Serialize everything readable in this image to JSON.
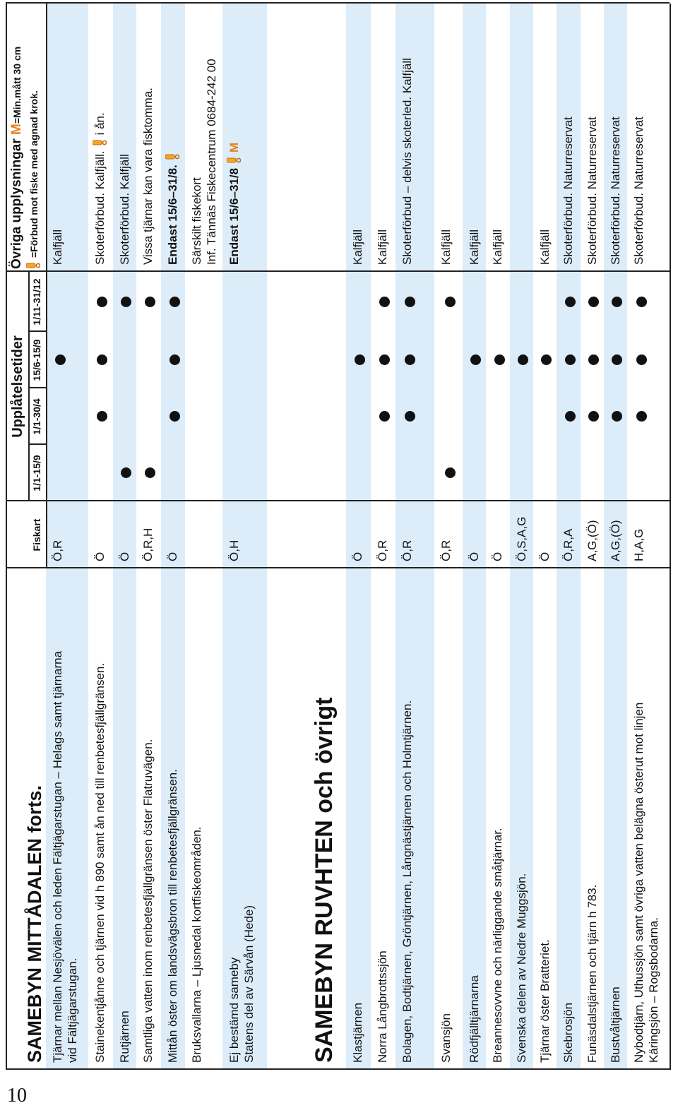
{
  "page_number": "10",
  "header": {
    "fiskart": "Fiskart",
    "periods_title": "Upplåtelsetider",
    "periods": [
      "1/1-15/9",
      "1/1-30/4",
      "15/6-15/9",
      "1/11-31/12"
    ],
    "notes_title": "Övriga upplysningar",
    "min_mark": "M",
    "min_text": "=Min.mått 30 cm",
    "hook_text": "=Förbud mot fiske med agnad krok."
  },
  "sections": [
    {
      "title": "SAMEBYN MITTÅDALEN forts.",
      "rows": [
        {
          "name": [
            "Tjärnar mellan Nesjövälen och leden Fältjägarstugan – Helags samt tjärnarna",
            "vid Fältjägarstugan."
          ],
          "fiskart": "Ö,R",
          "open": [
            false,
            false,
            true,
            false
          ],
          "notes": [
            "Kalfjäll"
          ]
        },
        {
          "name": [
            "Stainekentjånne och tjärnen vid h 890 samt ån ned till renbetesfjällgränsen."
          ],
          "fiskart": "Ö",
          "open": [
            false,
            true,
            true,
            true
          ],
          "notes": [
            "Skoterförbud. Kalfjäll."
          ],
          "hook": true,
          "notes_after": "i ån."
        },
        {
          "name": [
            "Rutjärnen"
          ],
          "fiskart": "Ö",
          "open": [
            true,
            false,
            false,
            true
          ],
          "notes": [
            "Skoterförbud. Kalfjäll"
          ]
        },
        {
          "name": [
            "Samtliga vatten inom renbetesfjällgränsen öster Flatruvägen."
          ],
          "fiskart": "Ö,R,H",
          "open": [
            true,
            false,
            false,
            true
          ],
          "notes": [
            "Vissa tjärnar kan vara fisktomma."
          ]
        },
        {
          "name": [
            "Mittån öster om landsvägsbron till renbetesfjällgränsen."
          ],
          "fiskart": "Ö",
          "open": [
            false,
            true,
            true,
            true
          ],
          "notes": [
            "Endast 15/6–31/8."
          ],
          "bold": true,
          "hook": true
        },
        {
          "name": [
            "Bruksvallarna – Ljusnedal kortfiskeområden."
          ],
          "open": [
            false,
            false,
            false,
            false
          ],
          "notes": [
            "Särskilt fiskekort",
            "Inf. Tännäs Fiskecentrum 0684-242 00"
          ]
        },
        {
          "name": [
            "Ej bestämd sameby",
            "Statens del av Särvån (Hede)"
          ],
          "fiskart": "Ö,H",
          "open": [
            false,
            false,
            false,
            false
          ],
          "notes": [
            "Endast 15/6–31/8"
          ],
          "bold": true,
          "hook": true,
          "min_mark": "M"
        }
      ]
    },
    {
      "title": "SAMEBYN RUVHTEN och övrigt",
      "rows": [
        {
          "name": [
            "Klastjärnen"
          ],
          "fiskart": "Ö",
          "open": [
            false,
            false,
            true,
            false
          ],
          "notes": [
            "Kalfjäll"
          ]
        },
        {
          "name": [
            "Norra Långbrottssjön"
          ],
          "fiskart": "Ö,R",
          "open": [
            false,
            true,
            true,
            true
          ],
          "notes": [
            "Kalfjäll"
          ]
        },
        {
          "name": [
            "Bolagen, Bodtjärnen, Gröntjärnen, Långnästjärnen och Holmtjärnen."
          ],
          "fiskart": "Ö,R",
          "open": [
            false,
            true,
            true,
            true
          ],
          "notes": [
            "Skoterförbud – delvis skoterled. Kalfjäll"
          ]
        },
        {
          "name": [
            "Svansjön"
          ],
          "fiskart": "Ö,R",
          "open": [
            true,
            false,
            false,
            true
          ],
          "notes": [
            "Kalfjäll"
          ]
        },
        {
          "name": [
            "Rödfjälltjärnarna"
          ],
          "fiskart": "Ö",
          "open": [
            false,
            false,
            true,
            false
          ],
          "notes": [
            "Kalfjäll"
          ]
        },
        {
          "name": [
            "Breannesovvne och närliggande småtjärnar."
          ],
          "fiskart": "Ö",
          "open": [
            false,
            false,
            true,
            false
          ],
          "notes": [
            "Kalfjäll"
          ]
        },
        {
          "name": [
            "Svenska delen av Nedre Muggsjön."
          ],
          "fiskart": "Ö,S,A,G",
          "open": [
            false,
            false,
            true,
            false
          ]
        },
        {
          "name": [
            "Tjärnar öster Bratteriet."
          ],
          "fiskart": "Ö",
          "open": [
            false,
            false,
            true,
            false
          ],
          "notes": [
            "Kalfjäll"
          ]
        },
        {
          "name": [
            "Skebrosjön"
          ],
          "fiskart": "Ö,R,A",
          "open": [
            false,
            true,
            true,
            true
          ],
          "notes": [
            "Skoterförbud. Naturreservat"
          ]
        },
        {
          "name": [
            "Funäsdalstjärnen och tjärn h 783."
          ],
          "fiskart": "A,G,(Ö)",
          "open": [
            false,
            true,
            true,
            true
          ],
          "notes": [
            "Skoterförbud. Naturreservat"
          ]
        },
        {
          "name": [
            "Bustvåltjärnen"
          ],
          "fiskart": "A,G,(Ö)",
          "open": [
            false,
            true,
            true,
            true
          ],
          "notes": [
            "Skoterförbud. Naturreservat"
          ]
        },
        {
          "name": [
            "Nybodtjärn, Uthussjön samt övriga vatten belägna österut mot linjen",
            "Käringsjön – Rogsbodarna."
          ],
          "fiskart": "H,A,G",
          "open": [
            false,
            true,
            true,
            true
          ],
          "notes": [
            "Skoterförbud. Naturreservat"
          ]
        }
      ]
    }
  ]
}
